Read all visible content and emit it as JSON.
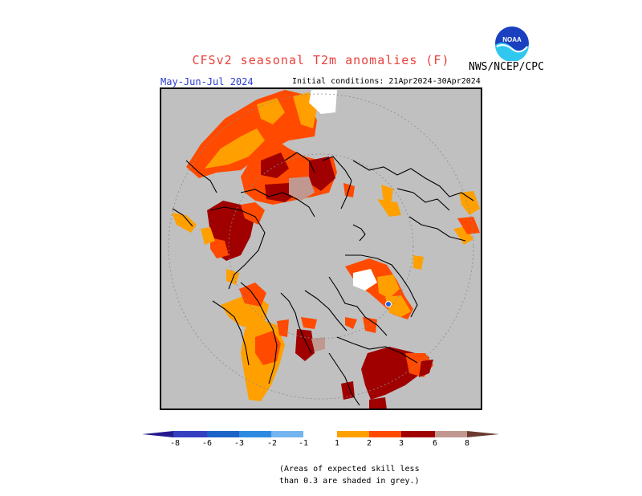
{
  "header": {
    "title": "CFSv2 seasonal T2m anomalies (F)",
    "organization": "NWS/NCEP/CPC",
    "logo_text": "NOAA",
    "period": "May-Jun-Jul 2024",
    "initial_conditions": "Initial conditions: 21Apr2024-30Apr2024"
  },
  "map": {
    "projection": "north polar stereographic",
    "background_color": "#c0c0c0",
    "no_skill_shading": "grey"
  },
  "colorbar": {
    "labels": [
      "-8",
      "-6",
      "-3",
      "-2",
      "-1",
      "1",
      "2",
      "3",
      "6",
      "8"
    ],
    "colors": {
      "below_-8": "#241a8c",
      "-8_-6": "#3440c0",
      "-6_-3": "#1c62c8",
      "-3_-2": "#2e8ae0",
      "-2_-1": "#74b4f0",
      "-1_1": "#ffffff",
      "1_2": "#ffa000",
      "2_3": "#ff4a00",
      "3_6": "#a00000",
      "6_8": "#c09890",
      "above_8": "#6a3a30"
    }
  },
  "footnote": {
    "line1": "(Areas of expected skill less",
    "line2": "than 0.3 are shaded in grey.)"
  }
}
